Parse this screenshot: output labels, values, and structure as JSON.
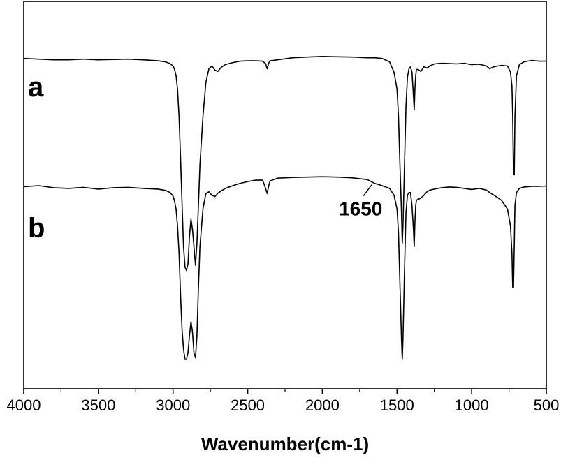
{
  "chart_data": {
    "type": "line",
    "xlabel": "Wavenumber(cm-1)",
    "ylabel": "",
    "xlim": [
      4000,
      500
    ],
    "x_reversed": true,
    "yticks_shown": false,
    "grid": false,
    "xticks": [
      4000,
      3500,
      3000,
      2500,
      2000,
      1500,
      1000,
      500
    ],
    "xtick_labels": [
      "4000",
      "3500",
      "3000",
      "2500",
      "2000",
      "1500",
      "1000",
      "500"
    ],
    "ylim": [
      0,
      1
    ],
    "series": [
      {
        "name": "a",
        "color": "#000000",
        "x": [
          4000,
          3900,
          3800,
          3700,
          3600,
          3500,
          3400,
          3300,
          3200,
          3100,
          3050,
          3020,
          3000,
          2990,
          2980,
          2970,
          2960,
          2950,
          2940,
          2930,
          2920,
          2910,
          2900,
          2890,
          2880,
          2870,
          2860,
          2850,
          2840,
          2830,
          2820,
          2800,
          2780,
          2760,
          2740,
          2720,
          2700,
          2680,
          2650,
          2600,
          2550,
          2500,
          2450,
          2400,
          2380,
          2370,
          2360,
          2350,
          2300,
          2200,
          2100,
          2000,
          1900,
          1800,
          1700,
          1650,
          1600,
          1550,
          1520,
          1500,
          1490,
          1480,
          1470,
          1465,
          1460,
          1450,
          1440,
          1430,
          1420,
          1410,
          1400,
          1390,
          1385,
          1380,
          1375,
          1370,
          1360,
          1340,
          1320,
          1300,
          1280,
          1250,
          1200,
          1150,
          1100,
          1050,
          1000,
          950,
          900,
          880,
          850,
          800,
          760,
          740,
          730,
          725,
          720,
          715,
          710,
          700,
          680,
          650,
          600,
          550,
          500
        ],
        "y": [
          0.87,
          0.868,
          0.866,
          0.866,
          0.868,
          0.866,
          0.867,
          0.868,
          0.866,
          0.863,
          0.86,
          0.855,
          0.848,
          0.838,
          0.82,
          0.78,
          0.7,
          0.58,
          0.45,
          0.32,
          0.26,
          0.25,
          0.27,
          0.35,
          0.4,
          0.37,
          0.32,
          0.265,
          0.33,
          0.44,
          0.56,
          0.7,
          0.8,
          0.84,
          0.848,
          0.836,
          0.832,
          0.843,
          0.852,
          0.858,
          0.862,
          0.863,
          0.863,
          0.862,
          0.855,
          0.84,
          0.856,
          0.863,
          0.866,
          0.872,
          0.874,
          0.876,
          0.875,
          0.874,
          0.872,
          0.872,
          0.87,
          0.86,
          0.83,
          0.78,
          0.7,
          0.55,
          0.42,
          0.33,
          0.38,
          0.56,
          0.73,
          0.815,
          0.84,
          0.845,
          0.83,
          0.76,
          0.72,
          0.78,
          0.82,
          0.838,
          0.838,
          0.832,
          0.846,
          0.842,
          0.848,
          0.854,
          0.856,
          0.855,
          0.854,
          0.856,
          0.852,
          0.853,
          0.848,
          0.84,
          0.846,
          0.85,
          0.848,
          0.83,
          0.79,
          0.7,
          0.53,
          0.53,
          0.7,
          0.82,
          0.852,
          0.86,
          0.864,
          0.862,
          0.862
        ]
      },
      {
        "name": "b",
        "color": "#000000",
        "x": [
          4000,
          3900,
          3800,
          3700,
          3600,
          3500,
          3400,
          3300,
          3200,
          3100,
          3050,
          3020,
          3000,
          2990,
          2980,
          2970,
          2960,
          2950,
          2940,
          2930,
          2920,
          2910,
          2900,
          2890,
          2880,
          2870,
          2860,
          2850,
          2840,
          2830,
          2820,
          2800,
          2780,
          2760,
          2740,
          2720,
          2700,
          2680,
          2650,
          2600,
          2550,
          2500,
          2450,
          2400,
          2380,
          2370,
          2360,
          2350,
          2300,
          2200,
          2100,
          2000,
          1900,
          1800,
          1700,
          1650,
          1600,
          1550,
          1520,
          1500,
          1490,
          1480,
          1470,
          1465,
          1460,
          1450,
          1440,
          1430,
          1420,
          1410,
          1400,
          1390,
          1385,
          1380,
          1375,
          1370,
          1360,
          1340,
          1320,
          1300,
          1280,
          1250,
          1200,
          1150,
          1100,
          1050,
          1000,
          950,
          900,
          880,
          850,
          800,
          760,
          740,
          730,
          725,
          720,
          715,
          710,
          700,
          680,
          650,
          600,
          550,
          500
        ],
        "y": [
          0.495,
          0.498,
          0.492,
          0.49,
          0.493,
          0.488,
          0.492,
          0.493,
          0.49,
          0.488,
          0.484,
          0.478,
          0.468,
          0.452,
          0.43,
          0.38,
          0.3,
          0.18,
          0.08,
          0.02,
          -0.01,
          -0.01,
          0.01,
          0.06,
          0.1,
          0.07,
          0.01,
          -0.005,
          0.06,
          0.2,
          0.32,
          0.43,
          0.475,
          0.48,
          0.47,
          0.466,
          0.476,
          0.482,
          0.49,
          0.498,
          0.505,
          0.51,
          0.514,
          0.514,
          0.49,
          0.475,
          0.496,
          0.512,
          0.52,
          0.522,
          0.523,
          0.524,
          0.523,
          0.521,
          0.516,
          0.505,
          0.498,
          0.49,
          0.47,
          0.43,
          0.36,
          0.2,
          0.05,
          -0.01,
          0.05,
          0.25,
          0.42,
          0.47,
          0.478,
          0.478,
          0.44,
          0.37,
          0.32,
          0.39,
          0.44,
          0.455,
          0.458,
          0.462,
          0.47,
          0.48,
          0.485,
          0.488,
          0.492,
          0.494,
          0.493,
          0.49,
          0.487,
          0.49,
          0.485,
          0.478,
          0.47,
          0.455,
          0.43,
          0.38,
          0.3,
          0.2,
          0.2,
          0.32,
          0.44,
          0.478,
          0.49,
          0.494,
          0.496,
          0.496,
          0.497
        ]
      }
    ],
    "annotations": [
      {
        "text": "1650",
        "x": 1650,
        "series": "b"
      }
    ]
  }
}
